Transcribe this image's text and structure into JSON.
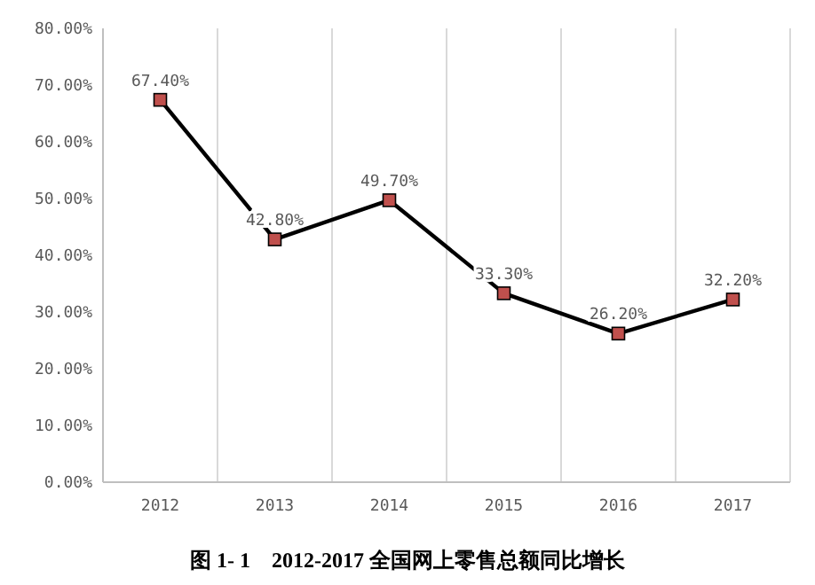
{
  "chart_data": {
    "type": "line",
    "title": "图 1- 1　2012-2017 全国网上零售总额同比增长",
    "categories": [
      "2012",
      "2013",
      "2014",
      "2015",
      "2016",
      "2017"
    ],
    "series": [
      {
        "color": "#000000",
        "values": [
          67.4,
          42.8,
          49.7,
          33.3,
          26.2,
          32.2
        ],
        "value_labels": [
          "67.40%",
          "42.80%",
          "49.70%",
          "33.30%",
          "26.20%",
          "32.20%"
        ]
      }
    ],
    "ylim": [
      0,
      80
    ],
    "yticks": [
      {
        "value": 0,
        "label": "0.00%"
      },
      {
        "value": 10,
        "label": "10.00%"
      },
      {
        "value": 20,
        "label": "20.00%"
      },
      {
        "value": 30,
        "label": "30.00%"
      },
      {
        "value": 40,
        "label": "40.00%"
      },
      {
        "value": 50,
        "label": "50.00%"
      },
      {
        "value": 60,
        "label": "60.00%"
      },
      {
        "value": 70,
        "label": "70.00%"
      },
      {
        "value": 80,
        "label": "80.00%"
      }
    ],
    "grid": "x",
    "marker": "square",
    "line_style": "solid"
  }
}
